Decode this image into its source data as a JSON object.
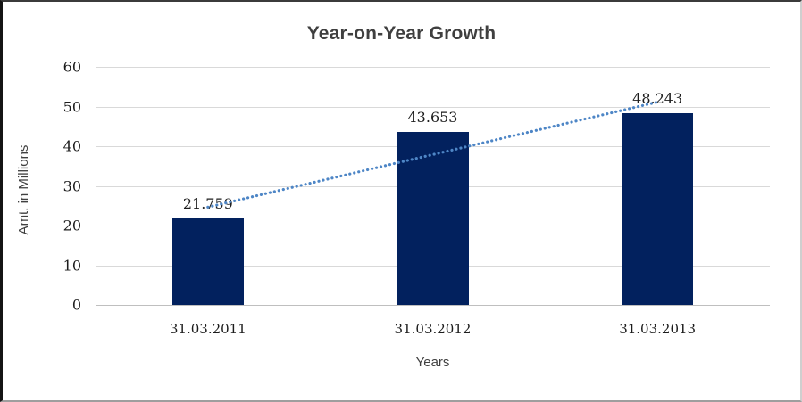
{
  "chart_data": {
    "type": "bar",
    "title": "Year-on-Year Growth",
    "categories": [
      "31.03.2011",
      "31.03.2012",
      "31.03.2013"
    ],
    "values": [
      21.759,
      43.653,
      48.243
    ],
    "data_labels": [
      "21.759",
      "43.653",
      "48.243"
    ],
    "xlabel": "Years",
    "ylabel": "Amt. in Millions",
    "ylim": [
      0,
      60
    ],
    "yticks": [
      0,
      10,
      20,
      30,
      40,
      50,
      60
    ],
    "grid": "horizontal",
    "legend": "none",
    "trendline": {
      "type": "linear",
      "style": "dotted",
      "color": "#4E86C6"
    },
    "colors": {
      "bar": "#02215E",
      "gridline": "#D9D9D9",
      "axis_line": "#BFBFBF",
      "title_text": "#3F3F3F",
      "axis_title_text": "#404040",
      "tick_text": "#1C1C1C",
      "data_label_text": "#1C1C1C",
      "background": "#FFFFFF"
    }
  }
}
